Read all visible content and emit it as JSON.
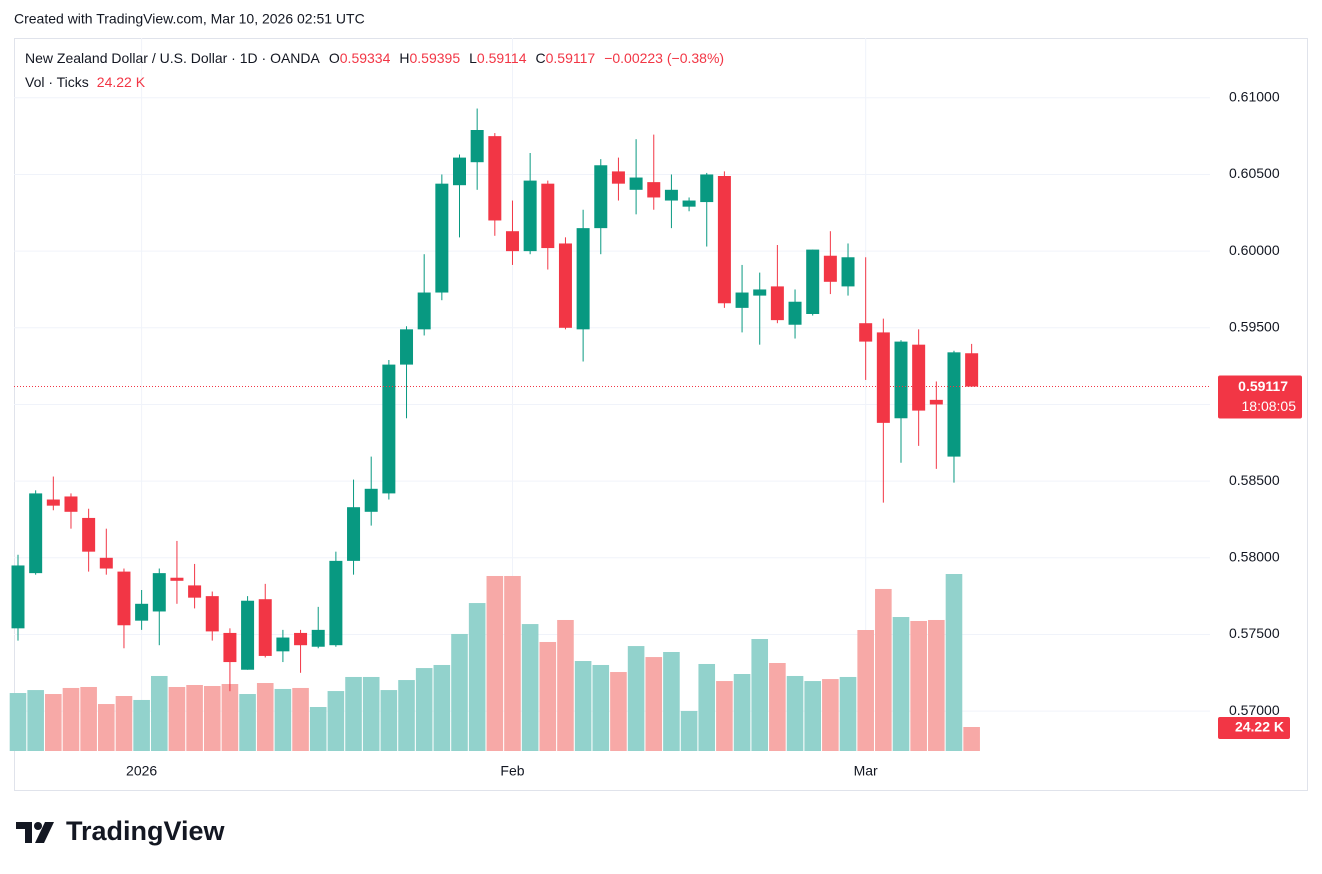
{
  "header": {
    "created": "Created with TradingView.com, Mar 10, 2026 02:51 UTC"
  },
  "chart_data": {
    "type": "candlestick",
    "title": "New Zealand Dollar / U.S. Dollar · 1D · OANDA",
    "ohlc_labels": [
      "O",
      "H",
      "L",
      "C"
    ],
    "change": "−0.00223 (−0.38%)",
    "countdown": "18:08:05",
    "categories": [
      null,
      null,
      null,
      null,
      null,
      null,
      null,
      "2026",
      null,
      null,
      null,
      null,
      null,
      null,
      null,
      null,
      null,
      null,
      null,
      null,
      null,
      null,
      null,
      null,
      null,
      null,
      null,
      null,
      "Feb",
      null,
      null,
      null,
      null,
      null,
      null,
      null,
      null,
      null,
      null,
      null,
      null,
      null,
      null,
      null,
      null,
      null,
      null,
      null,
      "Mar",
      null,
      null,
      null,
      null,
      null,
      null
    ],
    "open": [
      0.5754,
      0.579,
      0.5838,
      0.584,
      0.5826,
      0.58,
      0.5791,
      0.5759,
      0.5765,
      0.5787,
      0.5782,
      0.5775,
      0.5751,
      0.5727,
      0.5773,
      0.5739,
      0.5751,
      0.5742,
      0.5743,
      0.5798,
      0.583,
      0.5842,
      0.5926,
      0.5949,
      0.5973,
      0.6043,
      0.6058,
      0.6075,
      0.6013,
      0.6,
      0.6044,
      0.6005,
      0.5949,
      0.6015,
      0.6052,
      0.604,
      0.6045,
      0.6033,
      0.6029,
      0.6032,
      0.6049,
      0.5963,
      0.5971,
      0.5977,
      0.5952,
      0.5959,
      0.5997,
      0.5977,
      0.5953,
      0.5947,
      0.5891,
      0.5939,
      0.5903,
      0.5866,
      0.59334
    ],
    "high": [
      0.5802,
      0.5844,
      0.5853,
      0.5842,
      0.5832,
      0.5819,
      0.5793,
      0.5779,
      0.5793,
      0.5811,
      0.5796,
      0.5778,
      0.5754,
      0.5775,
      0.5783,
      0.5753,
      0.5753,
      0.5768,
      0.5804,
      0.5851,
      0.5866,
      0.5929,
      0.5951,
      0.5998,
      0.605,
      0.6063,
      0.6093,
      0.6077,
      0.6033,
      0.6064,
      0.6046,
      0.6009,
      0.6027,
      0.606,
      0.6061,
      0.6073,
      0.6076,
      0.605,
      0.6035,
      0.6051,
      0.6052,
      0.5991,
      0.5986,
      0.6004,
      0.5975,
      0.6001,
      0.6013,
      0.6005,
      0.5996,
      0.5956,
      0.5942,
      0.5949,
      0.5915,
      0.5935,
      0.59395
    ],
    "low": [
      0.5746,
      0.5789,
      0.5831,
      0.5819,
      0.5791,
      0.5789,
      0.5741,
      0.5753,
      0.5743,
      0.577,
      0.5767,
      0.5746,
      0.5713,
      0.5727,
      0.5735,
      0.5732,
      0.5725,
      0.5741,
      0.5742,
      0.5789,
      0.5821,
      0.5838,
      0.5891,
      0.5945,
      0.5968,
      0.6009,
      0.604,
      0.601,
      0.5991,
      0.5998,
      0.5988,
      0.5949,
      0.5928,
      0.5998,
      0.6033,
      0.6024,
      0.6027,
      0.6015,
      0.6026,
      0.6003,
      0.5963,
      0.5947,
      0.5939,
      0.5953,
      0.5943,
      0.5958,
      0.5972,
      0.5971,
      0.5916,
      0.5836,
      0.5862,
      0.5873,
      0.5858,
      0.5849,
      0.59114
    ],
    "close": [
      0.5795,
      0.5842,
      0.5834,
      0.583,
      0.5804,
      0.5793,
      0.5756,
      0.577,
      0.579,
      0.5785,
      0.5774,
      0.5752,
      0.5732,
      0.5772,
      0.5736,
      0.5748,
      0.5743,
      0.5753,
      0.5798,
      0.5833,
      0.5845,
      0.5926,
      0.5949,
      0.5973,
      0.6044,
      0.6061,
      0.6079,
      0.602,
      0.6,
      0.6046,
      0.6002,
      0.595,
      0.6015,
      0.6056,
      0.6044,
      0.6048,
      0.6035,
      0.604,
      0.6033,
      0.605,
      0.5966,
      0.5973,
      0.5975,
      0.5955,
      0.5967,
      0.6001,
      0.598,
      0.5996,
      0.5941,
      0.5888,
      0.5941,
      0.5896,
      0.59,
      0.5934,
      0.59117
    ],
    "up_color": "#089981",
    "down_color": "#f23645",
    "volume": {
      "name": "Vol · Ticks",
      "values": [
        58.5,
        61.5,
        57.5,
        63.6,
        64.6,
        47.4,
        55.5,
        51.5,
        75.7,
        64.6,
        66.6,
        65.6,
        67.6,
        57.5,
        68.6,
        62.6,
        63.6,
        44.4,
        60.5,
        74.7,
        74.7,
        61.5,
        71.6,
        83.7,
        86.8,
        118.1,
        149.3,
        176.6,
        176.6,
        128.1,
        110.0,
        132.2,
        90.8,
        86.8,
        79.7,
        105.9,
        94.8,
        99.9,
        40.4,
        87.8,
        70.6,
        77.7,
        113.0,
        88.8,
        75.7,
        70.6,
        72.6,
        74.7,
        122.1,
        163.5,
        135.2,
        131.2,
        132.2,
        178.6,
        24.22
      ],
      "value_labels": [
        null,
        null,
        null,
        null,
        null,
        null,
        null,
        null,
        null,
        null,
        null,
        null,
        null,
        null,
        null,
        null,
        null,
        null,
        null,
        null,
        null,
        null,
        null,
        null,
        null,
        null,
        null,
        null,
        null,
        null,
        null,
        null,
        null,
        null,
        null,
        null,
        null,
        null,
        null,
        null,
        null,
        null,
        null,
        null,
        null,
        null,
        null,
        null,
        null,
        null,
        null,
        null,
        null,
        null,
        "24.22 K"
      ],
      "up_color": "#92d2cc",
      "down_color": "#f7a9a7"
    },
    "ylim": [
      0.5674,
      0.6139
    ],
    "yticks": [
      {
        "value": 0.61,
        "label": "0.61000"
      },
      {
        "value": 0.605,
        "label": "0.60500"
      },
      {
        "value": 0.6,
        "label": "0.60000"
      },
      {
        "value": 0.595,
        "label": "0.59500"
      },
      {
        "value": 0.59,
        "label": "0.59000"
      },
      {
        "value": 0.585,
        "label": "0.58500"
      },
      {
        "value": 0.58,
        "label": "0.58000"
      },
      {
        "value": 0.575,
        "label": "0.57500"
      },
      {
        "value": 0.57,
        "label": "0.57000"
      }
    ],
    "grid": true
  },
  "footer": {
    "logo": "TradingView"
  }
}
